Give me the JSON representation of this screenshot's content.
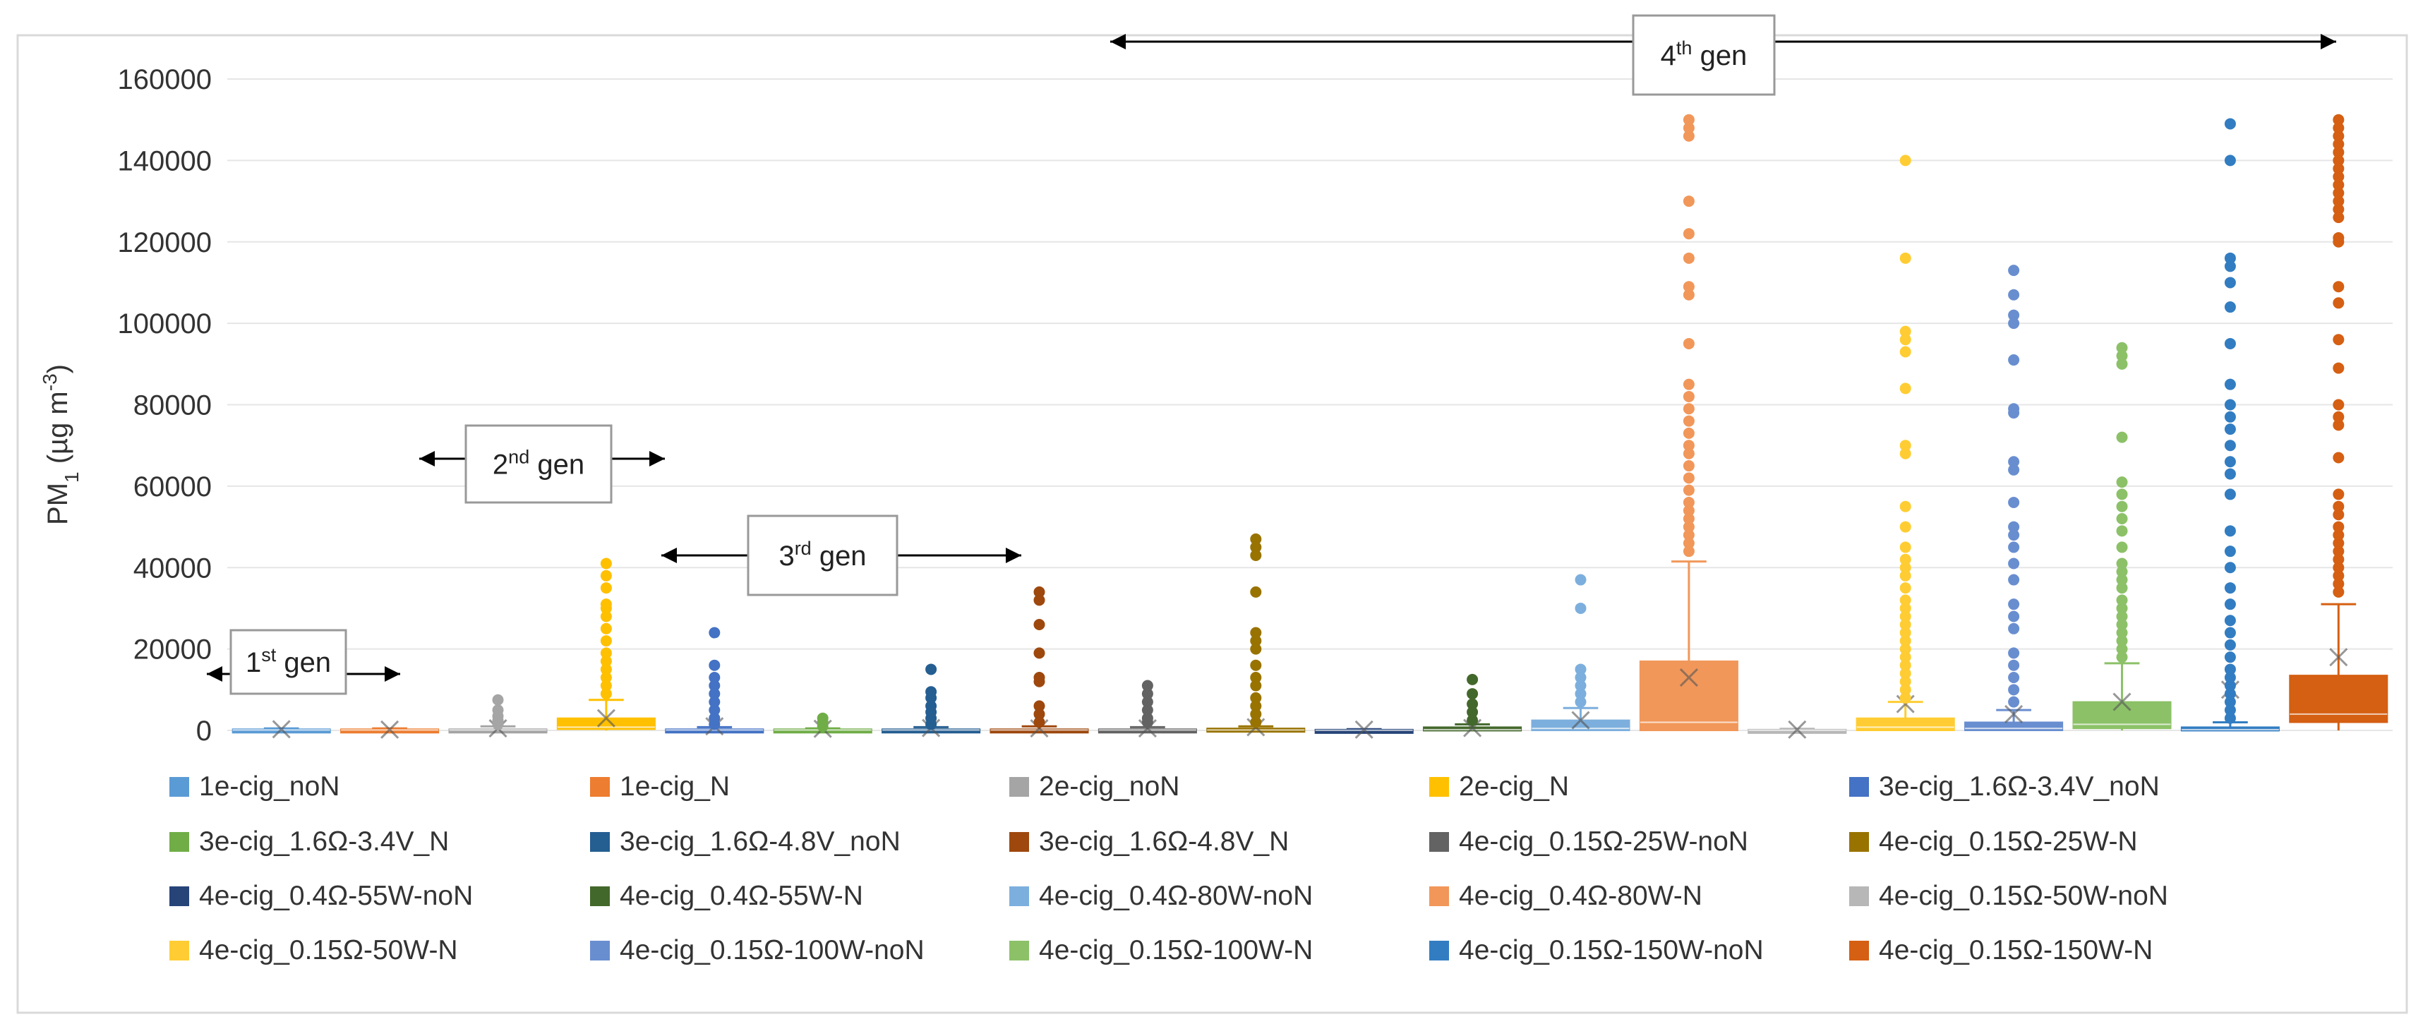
{
  "chart_data": {
    "type": "box",
    "ylabel": "PM",
    "ylabel_sub": "1",
    "ylabel_unit": " (µg m",
    "ylabel_sup": "-3",
    "ylabel_end": ")",
    "ylim": [
      0,
      160000
    ],
    "yticks": [
      0,
      20000,
      40000,
      60000,
      80000,
      100000,
      120000,
      140000,
      160000
    ],
    "ytick_labels": [
      "0",
      "20000",
      "40000",
      "60000",
      "80000",
      "100000",
      "120000",
      "140000",
      "160000"
    ],
    "series": [
      {
        "name": "1e-cig_noN",
        "color": "#5B9BD5",
        "q1": 0,
        "median": 100,
        "q3": 300,
        "whisker_low": 0,
        "whisker_high": 500,
        "mean": 300,
        "outliers": []
      },
      {
        "name": "1e-cig_N",
        "color": "#ED7D31",
        "q1": 0,
        "median": 100,
        "q3": 300,
        "whisker_low": 0,
        "whisker_high": 500,
        "mean": 200,
        "outliers": []
      },
      {
        "name": "2e-cig_noN",
        "color": "#A5A5A5",
        "q1": 0,
        "median": 100,
        "q3": 300,
        "whisker_low": 0,
        "whisker_high": 1000,
        "mean": 500,
        "outliers": [
          1500,
          2500,
          3500,
          5000,
          7500
        ]
      },
      {
        "name": "2e-cig_N",
        "color": "#FFC000",
        "q1": 300,
        "median": 800,
        "q3": 3000,
        "whisker_low": 0,
        "whisker_high": 7500,
        "mean": 3000,
        "outliers": [
          9000,
          11000,
          13000,
          15000,
          17000,
          19000,
          22000,
          25000,
          28000,
          30000,
          31000,
          35000,
          38000,
          41000
        ]
      },
      {
        "name": "3e-cig_1.6Ω-3.4V_noN",
        "color": "#4472C4",
        "q1": 0,
        "median": 100,
        "q3": 300,
        "whisker_low": 0,
        "whisker_high": 800,
        "mean": 1000,
        "outliers": [
          1500,
          3000,
          5000,
          7000,
          9000,
          11000,
          13000,
          16000,
          24000
        ]
      },
      {
        "name": "3e-cig_1.6Ω-3.4V_N",
        "color": "#70AD47",
        "q1": 0,
        "median": 100,
        "q3": 300,
        "whisker_low": 0,
        "whisker_high": 500,
        "mean": 400,
        "outliers": [
          1000,
          2000,
          3000
        ]
      },
      {
        "name": "3e-cig_1.6Ω-4.8V_noN",
        "color": "#255E91",
        "q1": 0,
        "median": 100,
        "q3": 300,
        "whisker_low": 0,
        "whisker_high": 800,
        "mean": 600,
        "outliers": [
          1500,
          3000,
          4500,
          6000,
          8000,
          9500,
          15000
        ]
      },
      {
        "name": "3e-cig_1.6Ω-4.8V_N",
        "color": "#9E480E",
        "q1": 0,
        "median": 100,
        "q3": 300,
        "whisker_low": 0,
        "whisker_high": 1000,
        "mean": 500,
        "outliers": [
          2000,
          4000,
          6000,
          12000,
          13000,
          19000,
          26000,
          32000,
          34000
        ]
      },
      {
        "name": "4e-cig_0.15Ω-25W-noN",
        "color": "#636363",
        "q1": 0,
        "median": 100,
        "q3": 300,
        "whisker_low": 0,
        "whisker_high": 800,
        "mean": 500,
        "outliers": [
          2000,
          3000,
          5000,
          7000,
          9000,
          11000
        ]
      },
      {
        "name": "4e-cig_0.15Ω-25W-N",
        "color": "#997300",
        "q1": 0,
        "median": 100,
        "q3": 500,
        "whisker_low": 0,
        "whisker_high": 1000,
        "mean": 800,
        "outliers": [
          2000,
          4000,
          6000,
          8000,
          11000,
          13000,
          16000,
          20000,
          22000,
          24000,
          34000,
          43000,
          45000,
          47000
        ]
      },
      {
        "name": "4e-cig_0.4Ω-55W-noN",
        "color": "#264478",
        "q1": 0,
        "median": 50,
        "q3": 200,
        "whisker_low": 0,
        "whisker_high": 300,
        "mean": 200,
        "outliers": []
      },
      {
        "name": "4e-cig_0.4Ω-55W-N",
        "color": "#43682B",
        "q1": 0,
        "median": 200,
        "q3": 800,
        "whisker_low": 0,
        "whisker_high": 1500,
        "mean": 600,
        "outliers": [
          2500,
          4500,
          6500,
          9000,
          12500
        ]
      },
      {
        "name": "4e-cig_0.4Ω-80W-noN",
        "color": "#7CAFDD",
        "q1": 0,
        "median": 500,
        "q3": 2500,
        "whisker_low": 0,
        "whisker_high": 5500,
        "mean": 2500,
        "outliers": [
          7000,
          9000,
          11000,
          13000,
          15000,
          30000,
          37000
        ]
      },
      {
        "name": "4e-cig_0.4Ω-80W-N",
        "color": "#F1975A",
        "q1": 0,
        "median": 2000,
        "q3": 17000,
        "whisker_low": 0,
        "whisker_high": 41500,
        "mean": 13000,
        "outliers": [
          44000,
          46000,
          48000,
          50000,
          52000,
          54000,
          56000,
          59000,
          62000,
          65000,
          68000,
          70000,
          73000,
          76000,
          79000,
          82000,
          85000,
          95000,
          107000,
          109000,
          116000,
          122000,
          130000,
          146000,
          148000,
          150000
        ]
      },
      {
        "name": "4e-cig_0.15Ω-50W-noN",
        "color": "#B7B7B7",
        "q1": 0,
        "median": 50,
        "q3": 200,
        "whisker_low": 0,
        "whisker_high": 400,
        "mean": 200,
        "outliers": []
      },
      {
        "name": "4e-cig_0.15Ω-50W-N",
        "color": "#FFCD33",
        "q1": 0,
        "median": 800,
        "q3": 3000,
        "whisker_low": 0,
        "whisker_high": 7000,
        "mean": 6500,
        "outliers": [
          8000,
          10000,
          12000,
          14000,
          16000,
          18000,
          20000,
          22000,
          24000,
          26000,
          28000,
          30000,
          32000,
          35000,
          38000,
          40000,
          42000,
          45000,
          50000,
          55000,
          68000,
          70000,
          84000,
          93000,
          96000,
          98000,
          116000,
          140000
        ]
      },
      {
        "name": "4e-cig_0.15Ω-100W-noN",
        "color": "#698ED0",
        "q1": 0,
        "median": 500,
        "q3": 2000,
        "whisker_low": 0,
        "whisker_high": 5000,
        "mean": 4000,
        "outliers": [
          7000,
          10000,
          13000,
          16000,
          19000,
          25000,
          28000,
          31000,
          37000,
          41000,
          45000,
          48000,
          50000,
          56000,
          64000,
          66000,
          78000,
          79000,
          91000,
          100000,
          102000,
          107000,
          113000
        ]
      },
      {
        "name": "4e-cig_0.15Ω-100W-N",
        "color": "#8CC168",
        "q1": 500,
        "median": 1500,
        "q3": 7000,
        "whisker_low": 0,
        "whisker_high": 16500,
        "mean": 7000,
        "outliers": [
          18000,
          20000,
          22000,
          24000,
          26000,
          28000,
          30000,
          32000,
          35000,
          37000,
          39000,
          41000,
          45000,
          49000,
          52000,
          55000,
          58000,
          61000,
          72000,
          90000,
          92000,
          94000
        ]
      },
      {
        "name": "4e-cig_0.15Ω-150W-noN",
        "color": "#327DC2",
        "q1": 0,
        "median": 200,
        "q3": 800,
        "whisker_low": 0,
        "whisker_high": 2000,
        "mean": 10000,
        "outliers": [
          3000,
          5000,
          7000,
          9000,
          11000,
          13000,
          15000,
          18000,
          21000,
          24000,
          27000,
          31000,
          35000,
          40000,
          44000,
          49000,
          58000,
          63000,
          66000,
          70000,
          74000,
          77000,
          80000,
          85000,
          95000,
          104000,
          110000,
          114000,
          116000,
          140000,
          149000
        ]
      },
      {
        "name": "4e-cig_0.15Ω-150W-N",
        "color": "#D55F12",
        "q1": 2000,
        "median": 4000,
        "q3": 13500,
        "whisker_low": 0,
        "whisker_high": 31000,
        "mean": 18000,
        "outliers": [
          34000,
          36000,
          38000,
          40000,
          42000,
          44000,
          46000,
          48000,
          50000,
          53000,
          55000,
          58000,
          67000,
          75000,
          77000,
          80000,
          89000,
          96000,
          105000,
          109000,
          120000,
          121000,
          126000,
          128000,
          130000,
          132000,
          134000,
          136000,
          138000,
          140000,
          142000,
          144000,
          146000,
          148000,
          150000
        ]
      }
    ],
    "annotations": [
      {
        "id": "gen1",
        "base": "1",
        "sup": "st",
        "rest": " gen"
      },
      {
        "id": "gen2",
        "base": "2",
        "sup": "nd",
        "rest": " gen"
      },
      {
        "id": "gen3",
        "base": "3",
        "sup": "rd",
        "rest": " gen"
      },
      {
        "id": "gen4",
        "base": "4",
        "sup": "th",
        "rest": " gen"
      }
    ]
  }
}
